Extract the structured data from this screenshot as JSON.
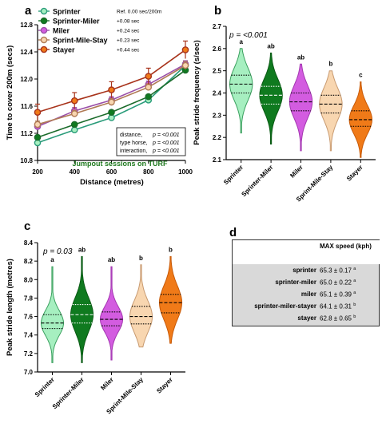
{
  "panel_labels": {
    "a": "a",
    "b": "b",
    "c": "c",
    "d": "d"
  },
  "colors": {
    "sprinter": "#a6efc0",
    "sprinter_dark": "#2e9e5a",
    "sprinter_miler": "#0f7a1f",
    "miler": "#d35ce0",
    "sprint_mile_stay": "#f8d6b0",
    "stayer": "#f07a18",
    "line_sprinter": "#2a9c7a",
    "line_sprinter_miler": "#1a6b2a",
    "line_miler": "#9a4fa8",
    "line_sms": "#b07a55",
    "line_stayer": "#a8331b",
    "jumpout": "#1f7a1f"
  },
  "chart_data": [
    {
      "panel": "a",
      "type": "line",
      "ylabel": "Time to cover 200m (secs)",
      "xlabel": "Distance (metres)",
      "x": [
        200,
        400,
        600,
        800,
        1000
      ],
      "xticks": [
        "200",
        "400",
        "600",
        "800",
        "1000"
      ],
      "ylim": [
        10.8,
        12.8
      ],
      "yticks": [
        "10.8",
        "11.2",
        "11.6",
        "12.0",
        "12.4",
        "12.8"
      ],
      "series": [
        {
          "name": "Sprinter",
          "note": "Ref. 0.00 sec/200m",
          "values": [
            11.06,
            11.25,
            11.43,
            11.69,
            12.2
          ],
          "err": [
            0.03,
            0.03,
            0.03,
            0.03,
            0.05
          ]
        },
        {
          "name": "Sprinter-Miler",
          "note": "+0.08 sec",
          "values": [
            11.14,
            11.33,
            11.51,
            11.74,
            12.13
          ],
          "err": [
            0.03,
            0.03,
            0.03,
            0.03,
            0.04
          ]
        },
        {
          "name": "Miler",
          "note": "+0.24 sec",
          "values": [
            11.3,
            11.53,
            11.69,
            11.92,
            12.22
          ],
          "err": [
            0.05,
            0.05,
            0.05,
            0.05,
            0.05
          ]
        },
        {
          "name": "Sprint-Mile-Stay",
          "note": "+0.23 sec",
          "values": [
            11.33,
            11.49,
            11.66,
            11.88,
            12.2
          ],
          "err": [
            0.05,
            0.05,
            0.05,
            0.05,
            0.06
          ]
        },
        {
          "name": "Stayer",
          "note": "+0.44 sec",
          "values": [
            11.51,
            11.68,
            11.84,
            12.04,
            12.43
          ],
          "err": [
            0.12,
            0.12,
            0.12,
            0.12,
            0.13
          ]
        }
      ],
      "stats": [
        {
          "label": "distance,",
          "p": "p = <0.001"
        },
        {
          "label": "type horse,",
          "p": "p = <0.001"
        },
        {
          "label": "interaction,",
          "p": "p = <0.001"
        }
      ],
      "annotation": "Jumpout sessions on TURF"
    },
    {
      "panel": "b",
      "type": "violin",
      "ylabel": "Peak stride frequency (s/sec)",
      "pvalue": "p = <0.001",
      "ylim": [
        2.1,
        2.7
      ],
      "yticks": [
        "2.1",
        "2.2",
        "2.3",
        "2.4",
        "2.5",
        "2.6",
        "2.7"
      ],
      "categories": [
        "Sprinter",
        "Sprinter-Miler",
        "Miler",
        "Sprint-Mile-Stay",
        "Stayer"
      ],
      "letters": [
        "a",
        "ab",
        "ab",
        "b",
        "c"
      ],
      "medians": [
        2.44,
        2.39,
        2.36,
        2.35,
        2.28
      ],
      "q1": [
        2.4,
        2.35,
        2.32,
        2.31,
        2.25
      ],
      "q3": [
        2.48,
        2.43,
        2.4,
        2.39,
        2.32
      ],
      "min": [
        2.22,
        2.17,
        2.14,
        2.14,
        2.11
      ],
      "max": [
        2.6,
        2.58,
        2.53,
        2.5,
        2.45
      ]
    },
    {
      "panel": "c",
      "type": "violin",
      "ylabel": "Peak stride length (metres)",
      "pvalue": "p = 0.03",
      "ylim": [
        7.0,
        8.4
      ],
      "yticks": [
        "7.0",
        "7.2",
        "7.4",
        "7.6",
        "7.8",
        "8.0",
        "8.2",
        "8.4"
      ],
      "categories": [
        "Sprinter",
        "Sprinter-Miler",
        "Miler",
        "Sprint-Mile-Stay",
        "Stayer"
      ],
      "letters": [
        "a",
        "ab",
        "ab",
        "b",
        "b"
      ],
      "medians": [
        7.53,
        7.62,
        7.57,
        7.6,
        7.75
      ],
      "q1": [
        7.47,
        7.53,
        7.5,
        7.52,
        7.64
      ],
      "q3": [
        7.62,
        7.73,
        7.65,
        7.71,
        7.84
      ],
      "min": [
        7.1,
        7.1,
        7.13,
        7.27,
        7.31
      ],
      "max": [
        8.14,
        8.25,
        8.14,
        8.16,
        8.25
      ]
    }
  ],
  "table": {
    "header": "MAX speed (kph)",
    "rows": [
      {
        "name": "sprinter",
        "value": "65.3 ± 0.17",
        "sup": "a"
      },
      {
        "name": "sprinter-miler",
        "value": "65.0 ± 0.22",
        "sup": "a"
      },
      {
        "name": "miler",
        "value": "65.1 ± 0.39",
        "sup": "a"
      },
      {
        "name": "sprinter-miler-stayer",
        "value": "64.1 ± 0.31",
        "sup": "b"
      },
      {
        "name": "stayer",
        "value": "62.8 ± 0.65",
        "sup": "b"
      }
    ]
  }
}
